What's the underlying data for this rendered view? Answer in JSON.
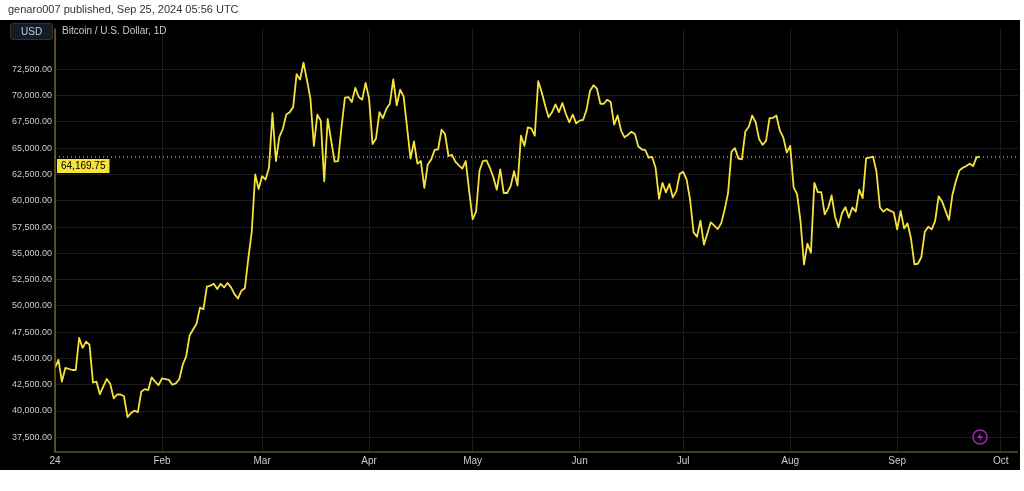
{
  "chart_data": {
    "type": "line",
    "title": "Bitcoin / U.S. Dollar, 1D",
    "subtitle": "genaro007 published, Sep 25, 2024 05:56 UTC",
    "annotations": [
      "USD"
    ],
    "x": [
      "2024-01-01",
      "2024-01-02",
      "2024-01-03",
      "2024-01-04",
      "2024-01-06",
      "2024-01-07",
      "2024-01-08",
      "2024-01-09",
      "2024-01-10",
      "2024-01-11",
      "2024-01-12",
      "2024-01-13",
      "2024-01-14",
      "2024-01-16",
      "2024-01-17",
      "2024-01-18",
      "2024-01-19",
      "2024-01-20",
      "2024-01-21",
      "2024-01-22",
      "2024-01-23",
      "2024-01-24",
      "2024-01-25",
      "2024-01-26",
      "2024-01-27",
      "2024-01-28",
      "2024-01-29",
      "2024-01-30",
      "2024-01-31",
      "2024-02-01",
      "2024-02-03",
      "2024-02-04",
      "2024-02-05",
      "2024-02-06",
      "2024-02-07",
      "2024-02-08",
      "2024-02-09",
      "2024-02-10",
      "2024-02-11",
      "2024-02-12",
      "2024-02-13",
      "2024-02-14",
      "2024-02-15",
      "2024-02-16",
      "2024-02-17",
      "2024-02-18",
      "2024-02-19",
      "2024-02-20",
      "2024-02-21",
      "2024-02-22",
      "2024-02-23",
      "2024-02-24",
      "2024-02-25",
      "2024-02-26",
      "2024-02-27",
      "2024-02-28",
      "2024-02-29",
      "2024-03-01",
      "2024-03-02",
      "2024-03-03",
      "2024-03-04",
      "2024-03-05",
      "2024-03-06",
      "2024-03-07",
      "2024-03-08",
      "2024-03-09",
      "2024-03-10",
      "2024-03-11",
      "2024-03-12",
      "2024-03-13",
      "2024-03-14",
      "2024-03-15",
      "2024-03-16",
      "2024-03-17",
      "2024-03-18",
      "2024-03-19",
      "2024-03-20",
      "2024-03-22",
      "2024-03-23",
      "2024-03-24",
      "2024-03-25",
      "2024-03-26",
      "2024-03-27",
      "2024-03-28",
      "2024-03-29",
      "2024-03-30",
      "2024-03-31",
      "2024-04-01",
      "2024-04-02",
      "2024-04-03",
      "2024-04-04",
      "2024-04-05",
      "2024-04-06",
      "2024-04-07",
      "2024-04-08",
      "2024-04-09",
      "2024-04-10",
      "2024-04-11",
      "2024-04-12",
      "2024-04-13",
      "2024-04-14",
      "2024-04-15",
      "2024-04-16",
      "2024-04-17",
      "2024-04-18",
      "2024-04-19",
      "2024-04-20",
      "2024-04-21",
      "2024-04-22",
      "2024-04-23",
      "2024-04-24",
      "2024-04-25",
      "2024-04-26",
      "2024-04-27",
      "2024-04-28",
      "2024-04-29",
      "2024-04-30",
      "2024-05-01",
      "2024-05-02",
      "2024-05-03",
      "2024-05-04",
      "2024-05-05",
      "2024-05-06",
      "2024-05-07",
      "2024-05-08",
      "2024-05-09",
      "2024-05-10",
      "2024-05-11",
      "2024-05-12",
      "2024-05-13",
      "2024-05-14",
      "2024-05-15",
      "2024-05-16",
      "2024-05-17",
      "2024-05-18",
      "2024-05-19",
      "2024-05-20",
      "2024-05-21",
      "2024-05-22",
      "2024-05-23",
      "2024-05-24",
      "2024-05-25",
      "2024-05-26",
      "2024-05-27",
      "2024-05-28",
      "2024-05-29",
      "2024-05-30",
      "2024-05-31",
      "2024-06-01",
      "2024-06-02",
      "2024-06-03",
      "2024-06-04",
      "2024-06-05",
      "2024-06-06",
      "2024-06-07",
      "2024-06-08",
      "2024-06-09",
      "2024-06-10",
      "2024-06-11",
      "2024-06-12",
      "2024-06-13",
      "2024-06-14",
      "2024-06-15",
      "2024-06-16",
      "2024-06-17",
      "2024-06-18",
      "2024-06-19",
      "2024-06-20",
      "2024-06-21",
      "2024-06-22",
      "2024-06-23",
      "2024-06-24",
      "2024-06-25",
      "2024-06-26",
      "2024-06-27",
      "2024-06-28",
      "2024-06-29",
      "2024-06-30",
      "2024-07-01",
      "2024-07-02",
      "2024-07-03",
      "2024-07-04",
      "2024-07-05",
      "2024-07-06",
      "2024-07-07",
      "2024-07-08",
      "2024-07-09",
      "2024-07-10",
      "2024-07-11",
      "2024-07-12",
      "2024-07-13",
      "2024-07-14",
      "2024-07-15",
      "2024-07-16",
      "2024-07-17",
      "2024-07-18",
      "2024-07-19",
      "2024-07-20",
      "2024-07-21",
      "2024-07-22",
      "2024-07-23",
      "2024-07-24",
      "2024-07-25",
      "2024-07-26",
      "2024-07-27",
      "2024-07-28",
      "2024-07-29",
      "2024-07-30",
      "2024-07-31",
      "2024-08-01",
      "2024-08-02",
      "2024-08-03",
      "2024-08-04",
      "2024-08-05",
      "2024-08-06",
      "2024-08-07",
      "2024-08-08",
      "2024-08-09",
      "2024-08-10",
      "2024-08-11",
      "2024-08-12",
      "2024-08-13",
      "2024-08-14",
      "2024-08-15",
      "2024-08-16",
      "2024-08-17",
      "2024-08-18",
      "2024-08-19",
      "2024-08-20",
      "2024-08-21",
      "2024-08-22",
      "2024-08-23",
      "2024-08-24",
      "2024-08-25",
      "2024-08-26",
      "2024-08-27",
      "2024-08-28",
      "2024-08-29",
      "2024-08-30",
      "2024-08-31",
      "2024-09-01",
      "2024-09-02",
      "2024-09-03",
      "2024-09-04",
      "2024-09-05",
      "2024-09-06",
      "2024-09-07",
      "2024-09-08",
      "2024-09-09",
      "2024-09-10",
      "2024-09-11",
      "2024-09-12",
      "2024-09-13",
      "2024-09-14",
      "2024-09-15",
      "2024-09-16",
      "2024-09-17",
      "2024-09-18",
      "2024-09-19",
      "2024-09-20",
      "2024-09-21",
      "2024-09-22",
      "2024-09-23",
      "2024-09-24",
      "2024-09-25"
    ],
    "series": [
      {
        "color": "#f5e23a",
        "values": [
          44130,
          44870,
          42800,
          44100,
          43900,
          43900,
          46950,
          46000,
          46600,
          46300,
          42700,
          42800,
          41600,
          43050,
          42600,
          41200,
          41570,
          41570,
          41400,
          39420,
          39800,
          40030,
          39900,
          41830,
          42080,
          41990,
          43200,
          42800,
          42470,
          43100,
          42960,
          42500,
          42630,
          43020,
          44400,
          45200,
          47180,
          47760,
          48300,
          49840,
          49680,
          51830,
          51930,
          52100,
          51600,
          52100,
          51760,
          52180,
          51760,
          51120,
          50700,
          51440,
          51670,
          54500,
          57050,
          62500,
          61120,
          62340,
          62020,
          63140,
          68330,
          63780,
          66090,
          66830,
          68200,
          68430,
          68910,
          72050,
          71540,
          73140,
          71480,
          69720,
          65230,
          68200,
          67630,
          61860,
          67790,
          63720,
          63780,
          66990,
          69810,
          69870,
          69390,
          70740,
          69870,
          69620,
          71220,
          69710,
          65390,
          65930,
          68430,
          67850,
          68750,
          69230,
          71540,
          69070,
          70580,
          69940,
          66990,
          64010,
          65640,
          63530,
          63780,
          61220,
          63460,
          63940,
          64840,
          64900,
          66760,
          66350,
          64260,
          64360,
          63720,
          63370,
          63050,
          63780,
          60900,
          58240,
          58980,
          62880,
          63780,
          63850,
          63140,
          62240,
          61060,
          62980,
          60740,
          60740,
          61380,
          62820,
          61440,
          66190,
          65220,
          66990,
          66890,
          66190,
          71380,
          70350,
          69070,
          67950,
          68430,
          69170,
          68430,
          69300,
          68270,
          67470,
          68200,
          67370,
          67630,
          67690,
          68650,
          70450,
          70990,
          70670,
          69230,
          69230,
          69620,
          69390,
          67240,
          68110,
          66670,
          66030,
          66280,
          66570,
          66350,
          65160,
          64900,
          64810,
          64100,
          64170,
          63140,
          60190,
          61700,
          60800,
          61600,
          60320,
          60900,
          62560,
          62760,
          62020,
          60100,
          56990,
          56580,
          58110,
          55830,
          56890,
          57950,
          57630,
          57310,
          57850,
          59140,
          60740,
          64680,
          65000,
          64010,
          63940,
          66600,
          67050,
          68110,
          67470,
          65860,
          65320,
          65700,
          67850,
          67880,
          68110,
          66670,
          66030,
          64580,
          65220,
          61280,
          60640,
          58010,
          53940,
          55930,
          55060,
          61700,
          60830,
          60830,
          58720,
          59300,
          60510,
          58490,
          57470,
          58810,
          59390,
          58400,
          59360,
          58970,
          61060,
          60260,
          64040,
          64100,
          64200,
          62760,
          59360,
          58970,
          59230,
          59040,
          58910,
          57280,
          59040,
          57370,
          57850,
          56410,
          53940,
          54010,
          54650,
          57050,
          57530,
          57280,
          58080,
          60420,
          59940,
          59040,
          58170,
          60580,
          61860,
          62880,
          63140,
          63300,
          63530,
          63300,
          64160,
          64169.75
        ]
      }
    ],
    "xlim": [
      "2024-01-01",
      "2024-10-06"
    ],
    "xticks": [
      {
        "value": "2024-01-01",
        "label": "24"
      },
      {
        "value": "2024-02-01",
        "label": "Feb"
      },
      {
        "value": "2024-03-01",
        "label": "Mar"
      },
      {
        "value": "2024-04-01",
        "label": "Apr"
      },
      {
        "value": "2024-05-01",
        "label": "May"
      },
      {
        "value": "2024-06-01",
        "label": "Jun"
      },
      {
        "value": "2024-07-01",
        "label": "Jul"
      },
      {
        "value": "2024-08-01",
        "label": "Aug"
      },
      {
        "value": "2024-09-01",
        "label": "Sep"
      },
      {
        "value": "2024-10-01",
        "label": "Oct"
      }
    ],
    "ylim": [
      36100,
      76400
    ],
    "yticks": [
      {
        "value": 37500,
        "label": "37,500.00"
      },
      {
        "value": 40000,
        "label": "40,000.00"
      },
      {
        "value": 42500,
        "label": "42,500.00"
      },
      {
        "value": 45000,
        "label": "45,000.00"
      },
      {
        "value": 47500,
        "label": "47,500.00"
      },
      {
        "value": 50000,
        "label": "50,000.00"
      },
      {
        "value": 52500,
        "label": "52,500.00"
      },
      {
        "value": 55000,
        "label": "55,000.00"
      },
      {
        "value": 57500,
        "label": "57,500.00"
      },
      {
        "value": 60000,
        "label": "60,000.00"
      },
      {
        "value": 62500,
        "label": "62,500.00"
      },
      {
        "value": 65000,
        "label": "65,000.00"
      },
      {
        "value": 67500,
        "label": "67,500.00"
      },
      {
        "value": 70000,
        "label": "70,000.00"
      },
      {
        "value": 72500,
        "label": "72,500.00"
      }
    ],
    "ref_lines": [
      {
        "axis": "y",
        "value": 64169.75,
        "label": "64,169.75",
        "color": "#f5e23a",
        "line_style": "dotted"
      }
    ],
    "grid": true,
    "legend": false,
    "marker": "none",
    "line_style": "solid"
  }
}
